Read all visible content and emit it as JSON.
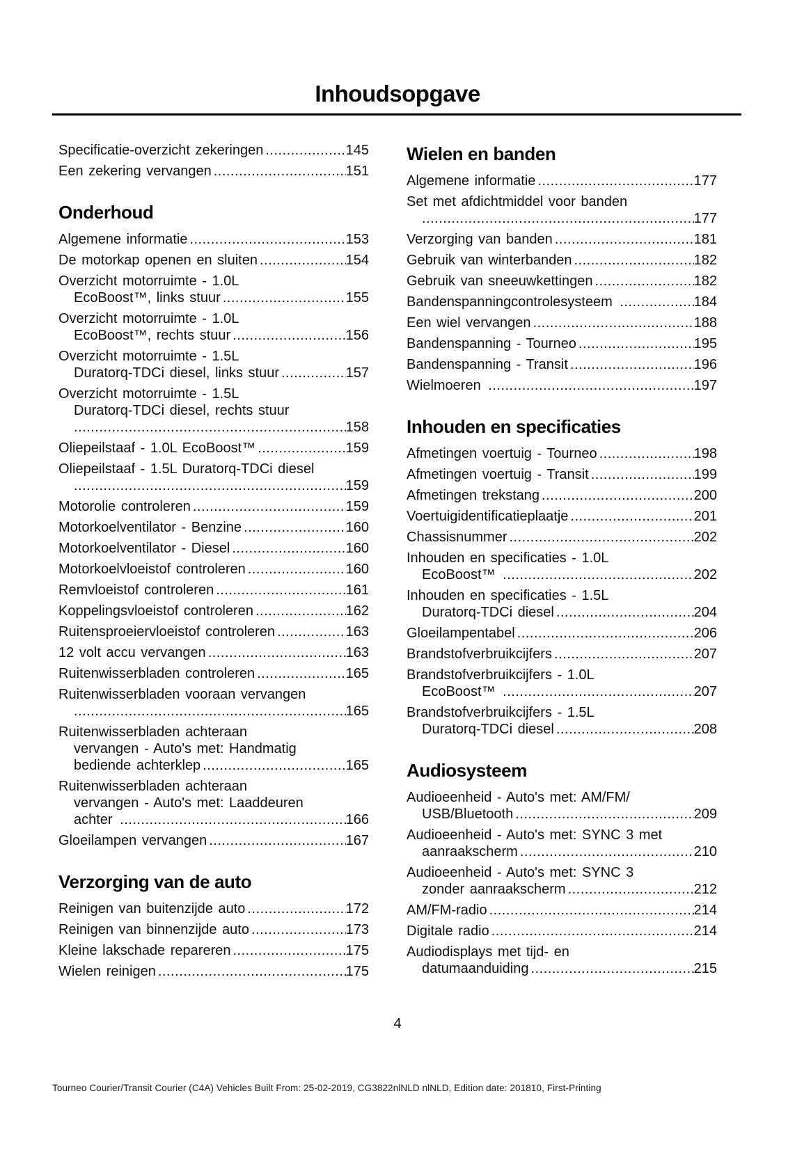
{
  "page": {
    "title": "Inhoudsopgave",
    "page_number": "4",
    "footer": "Tourneo Courier/Transit Courier (C4A) Vehicles Built From: 25-02-2019, CG3822nlNLD nlNLD, Edition date: 201810, First-Printing"
  },
  "columns": [
    {
      "blocks": [
        {
          "heading": null,
          "entries": [
            {
              "tail": "Specificatie-overzicht zekeringen",
              "page": "145"
            },
            {
              "tail": "Een zekering vervangen",
              "page": "151"
            }
          ]
        },
        {
          "heading": "Onderhoud",
          "entries": [
            {
              "tail": "Algemene informatie",
              "page": "153"
            },
            {
              "tail": "De motorkap openen en sluiten",
              "page": "154"
            },
            {
              "pre": [
                "Overzicht motorruimte - 1.0L"
              ],
              "tail": "EcoBoost™, links stuur",
              "page": "155"
            },
            {
              "pre": [
                "Overzicht motorruimte - 1.0L"
              ],
              "tail": "EcoBoost™, rechts stuur",
              "page": "156"
            },
            {
              "pre": [
                "Overzicht motorruimte - 1.5L"
              ],
              "tail": "Duratorq-TDCi diesel, links stuur",
              "page": "157"
            },
            {
              "pre": [
                "Overzicht motorruimte - 1.5L",
                "Duratorq-TDCi diesel, rechts stuur"
              ],
              "tail": "",
              "page": "158"
            },
            {
              "tail": "Oliepeilstaaf - 1.0L EcoBoost™",
              "page": "159"
            },
            {
              "pre": [
                "Oliepeilstaaf - 1.5L Duratorq-TDCi diesel"
              ],
              "tail": "",
              "page": "159"
            },
            {
              "tail": "Motorolie controleren",
              "page": "159"
            },
            {
              "tail": "Motorkoelventilator - Benzine",
              "page": "160"
            },
            {
              "tail": "Motorkoelventilator - Diesel",
              "page": "160"
            },
            {
              "tail": "Motorkoelvloeistof controleren",
              "page": "160"
            },
            {
              "tail": "Remvloeistof controleren",
              "page": "161"
            },
            {
              "tail": "Koppelingsvloeistof controleren",
              "page": "162"
            },
            {
              "tail": "Ruitensproeiervloeistof controleren",
              "page": "163"
            },
            {
              "tail": "12 volt accu vervangen",
              "page": "163"
            },
            {
              "tail": "Ruitenwisserbladen controleren",
              "page": "165"
            },
            {
              "pre": [
                "Ruitenwisserbladen vooraan vervangen"
              ],
              "tail": "",
              "page": "165"
            },
            {
              "pre": [
                "Ruitenwisserbladen achteraan",
                "vervangen - Auto's met: Handmatig"
              ],
              "tail": "bediende achterklep",
              "page": "165"
            },
            {
              "pre": [
                "Ruitenwisserbladen achteraan",
                "vervangen - Auto's met: Laaddeuren"
              ],
              "tail": "achter ",
              "page": "166"
            },
            {
              "tail": "Gloeilampen vervangen",
              "page": "167"
            }
          ]
        },
        {
          "heading": "Verzorging van de auto",
          "entries": [
            {
              "tail": "Reinigen van buitenzijde auto",
              "page": "172"
            },
            {
              "tail": "Reinigen van binnenzijde auto",
              "page": "173"
            },
            {
              "tail": "Kleine lakschade repareren",
              "page": "175"
            },
            {
              "tail": "Wielen reinigen",
              "page": "175"
            }
          ]
        }
      ]
    },
    {
      "blocks": [
        {
          "heading": "Wielen en banden",
          "entries": [
            {
              "tail": "Algemene informatie",
              "page": "177"
            },
            {
              "pre": [
                "Set met afdichtmiddel voor banden"
              ],
              "tail": "",
              "page": "177"
            },
            {
              "tail": "Verzorging van banden",
              "page": "181"
            },
            {
              "tail": "Gebruik van winterbanden",
              "page": "182"
            },
            {
              "tail": "Gebruik van sneeuwkettingen",
              "page": "182"
            },
            {
              "tail": "Bandenspanningcontrolesysteem ",
              "page": "184"
            },
            {
              "tail": "Een wiel vervangen",
              "page": "188"
            },
            {
              "tail": "Bandenspanning - Tourneo",
              "page": "195"
            },
            {
              "tail": "Bandenspanning - Transit",
              "page": "196"
            },
            {
              "tail": "Wielmoeren ",
              "page": "197"
            }
          ]
        },
        {
          "heading": "Inhouden en specificaties",
          "entries": [
            {
              "tail": "Afmetingen voertuig - Tourneo",
              "page": "198"
            },
            {
              "tail": "Afmetingen voertuig - Transit",
              "page": "199"
            },
            {
              "tail": "Afmetingen trekstang",
              "page": "200"
            },
            {
              "tail": "Voertuigidentificatieplaatje",
              "page": "201"
            },
            {
              "tail": "Chassisnummer",
              "page": "202"
            },
            {
              "pre": [
                "Inhouden en specificaties - 1.0L"
              ],
              "tail": "EcoBoost™ ",
              "page": "202"
            },
            {
              "pre": [
                "Inhouden en specificaties - 1.5L"
              ],
              "tail": "Duratorq-TDCi diesel",
              "page": "204"
            },
            {
              "tail": "Gloeilampentabel",
              "page": "206"
            },
            {
              "tail": "Brandstofverbruikcijfers",
              "page": "207"
            },
            {
              "pre": [
                "Brandstofverbruikcijfers - 1.0L"
              ],
              "tail": "EcoBoost™ ",
              "page": "207"
            },
            {
              "pre": [
                "Brandstofverbruikcijfers - 1.5L"
              ],
              "tail": "Duratorq-TDCi diesel",
              "page": "208"
            }
          ]
        },
        {
          "heading": "Audiosysteem",
          "entries": [
            {
              "pre": [
                "Audioeenheid - Auto's met: AM/FM/"
              ],
              "tail": "USB/Bluetooth",
              "page": "209"
            },
            {
              "pre": [
                "Audioeenheid - Auto's met: SYNC 3 met"
              ],
              "tail": "aanraakscherm",
              "page": "210"
            },
            {
              "pre": [
                "Audioeenheid - Auto's met: SYNC 3"
              ],
              "tail": "zonder aanraakscherm",
              "page": "212"
            },
            {
              "tail": "AM/FM-radio",
              "page": "214"
            },
            {
              "tail": "Digitale radio",
              "page": "214"
            },
            {
              "pre": [
                "Audiodisplays met tijd- en"
              ],
              "tail": "datumaanduiding",
              "page": "215"
            }
          ]
        }
      ]
    }
  ]
}
